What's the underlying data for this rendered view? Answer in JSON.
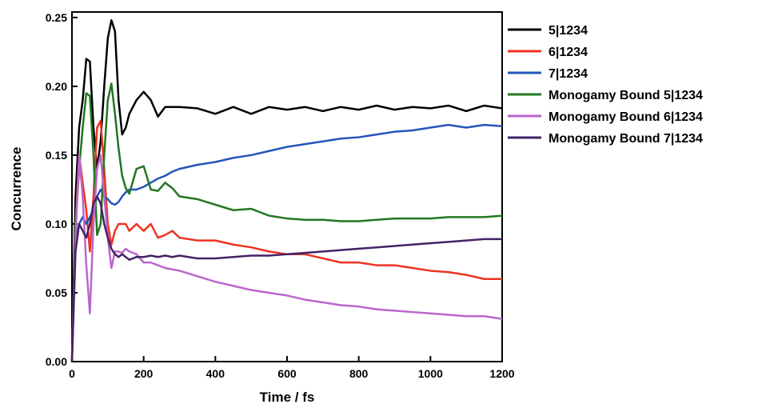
{
  "chart_data": {
    "type": "line",
    "x_label": "Time / fs",
    "y_label": "Concurrence",
    "x": [
      0,
      10,
      20,
      30,
      40,
      50,
      60,
      70,
      80,
      90,
      100,
      110,
      120,
      130,
      140,
      150,
      160,
      180,
      200,
      220,
      240,
      260,
      280,
      300,
      350,
      400,
      450,
      500,
      550,
      600,
      650,
      700,
      750,
      800,
      850,
      900,
      950,
      1000,
      1050,
      1100,
      1150,
      1200
    ],
    "xlim": [
      0,
      1200
    ],
    "ylim": [
      0,
      0.254
    ],
    "xticks": [
      0,
      200,
      400,
      600,
      800,
      1000,
      1200
    ],
    "yticks": [
      {
        "value": 0,
        "label": "0.00"
      },
      {
        "value": 0.05,
        "label": "0.05"
      },
      {
        "value": 0.1,
        "label": "0.10"
      },
      {
        "value": 0.15,
        "label": "0.15"
      },
      {
        "value": 0.2,
        "label": "0.20"
      },
      {
        "value": 0.25,
        "label": "0.25"
      }
    ],
    "legend": "right",
    "series": [
      {
        "name": "5|1234",
        "color": "#000000",
        "values": [
          0,
          0.12,
          0.17,
          0.19,
          0.22,
          0.218,
          0.17,
          0.14,
          0.16,
          0.2,
          0.235,
          0.248,
          0.24,
          0.19,
          0.165,
          0.17,
          0.18,
          0.19,
          0.196,
          0.19,
          0.178,
          0.185,
          0.185,
          0.185,
          0.184,
          0.18,
          0.185,
          0.18,
          0.185,
          0.183,
          0.185,
          0.182,
          0.185,
          0.183,
          0.186,
          0.183,
          0.185,
          0.184,
          0.186,
          0.182,
          0.186,
          0.184
        ]
      },
      {
        "name": "6|1234",
        "color": "#ee3322",
        "values": [
          0,
          0.1,
          0.15,
          0.13,
          0.11,
          0.08,
          0.12,
          0.17,
          0.175,
          0.14,
          0.1,
          0.085,
          0.095,
          0.1,
          0.1,
          0.1,
          0.095,
          0.1,
          0.095,
          0.1,
          0.09,
          0.092,
          0.095,
          0.09,
          0.088,
          0.088,
          0.085,
          0.083,
          0.08,
          0.078,
          0.078,
          0.075,
          0.072,
          0.072,
          0.07,
          0.07,
          0.068,
          0.066,
          0.065,
          0.063,
          0.06,
          0.06
        ]
      },
      {
        "name": "7|1234",
        "color": "#2255bb",
        "values": [
          0,
          0.09,
          0.1,
          0.105,
          0.1,
          0.105,
          0.11,
          0.12,
          0.125,
          0.12,
          0.118,
          0.115,
          0.114,
          0.116,
          0.12,
          0.123,
          0.125,
          0.125,
          0.127,
          0.13,
          0.133,
          0.135,
          0.138,
          0.14,
          0.143,
          0.145,
          0.148,
          0.15,
          0.153,
          0.156,
          0.158,
          0.16,
          0.162,
          0.163,
          0.165,
          0.167,
          0.168,
          0.17,
          0.172,
          0.17,
          0.172,
          0.171
        ]
      },
      {
        "name": "Monogamy Bound 5|1234",
        "color": "#227722",
        "values": [
          0,
          0.1,
          0.14,
          0.17,
          0.195,
          0.193,
          0.15,
          0.092,
          0.1,
          0.15,
          0.19,
          0.202,
          0.18,
          0.155,
          0.135,
          0.126,
          0.122,
          0.14,
          0.142,
          0.125,
          0.124,
          0.13,
          0.126,
          0.12,
          0.118,
          0.114,
          0.11,
          0.111,
          0.106,
          0.104,
          0.103,
          0.103,
          0.102,
          0.102,
          0.103,
          0.104,
          0.104,
          0.104,
          0.105,
          0.105,
          0.105,
          0.106
        ]
      },
      {
        "name": "Monogamy Bound 6|1234",
        "color": "#bb66cc",
        "values": [
          0,
          0.09,
          0.15,
          0.12,
          0.07,
          0.035,
          0.1,
          0.14,
          0.15,
          0.12,
          0.09,
          0.068,
          0.08,
          0.08,
          0.079,
          0.082,
          0.08,
          0.078,
          0.072,
          0.072,
          0.07,
          0.068,
          0.067,
          0.066,
          0.062,
          0.058,
          0.055,
          0.052,
          0.05,
          0.048,
          0.045,
          0.043,
          0.041,
          0.04,
          0.038,
          0.037,
          0.036,
          0.035,
          0.034,
          0.033,
          0.033,
          0.031
        ]
      },
      {
        "name": "Monogamy Bound 7|1234",
        "color": "#442266",
        "values": [
          0,
          0.08,
          0.1,
          0.095,
          0.09,
          0.1,
          0.115,
          0.12,
          0.115,
          0.1,
          0.09,
          0.082,
          0.078,
          0.076,
          0.078,
          0.076,
          0.074,
          0.076,
          0.076,
          0.077,
          0.076,
          0.077,
          0.076,
          0.077,
          0.075,
          0.075,
          0.076,
          0.077,
          0.077,
          0.078,
          0.079,
          0.08,
          0.081,
          0.082,
          0.083,
          0.084,
          0.085,
          0.086,
          0.087,
          0.088,
          0.089,
          0.089
        ]
      }
    ]
  }
}
